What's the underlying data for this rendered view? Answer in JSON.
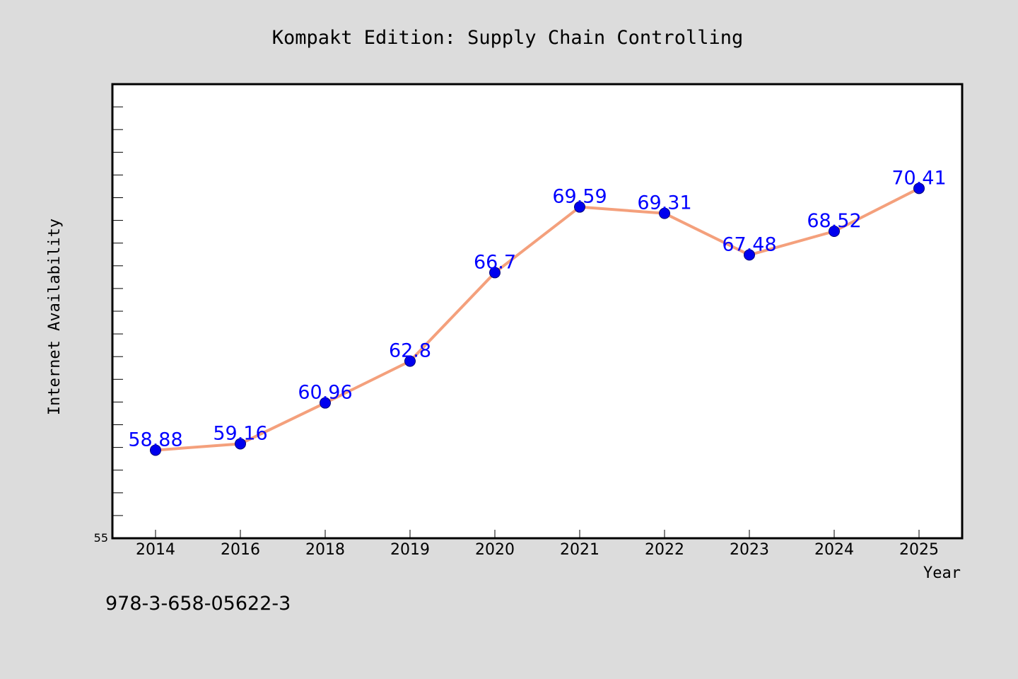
{
  "chart_data": {
    "type": "line",
    "title": "Kompakt Edition: Supply Chain Controlling",
    "xlabel": "Year",
    "ylabel": "Internet Availability",
    "categories": [
      "2014",
      "2016",
      "2018",
      "2019",
      "2020",
      "2021",
      "2022",
      "2023",
      "2024",
      "2025"
    ],
    "series": [
      {
        "values": [
          58.88,
          59.16,
          60.96,
          62.8,
          66.7,
          69.59,
          69.31,
          67.48,
          68.52,
          70.41
        ],
        "labels": [
          "58.88",
          "59.16",
          "60.96",
          "62.8",
          "66.7",
          "69.59",
          "69.31",
          "67.48",
          "68.52",
          "70.41"
        ],
        "line_color": "#f4a07c",
        "marker_color": "#0000ee",
        "label_color": "#0000ff"
      }
    ],
    "ylim": [
      55,
      75
    ],
    "ytick_labels": [
      "55"
    ],
    "grid": false,
    "legend": "none"
  },
  "footer": {
    "isbn": "978-3-658-05622-3"
  }
}
